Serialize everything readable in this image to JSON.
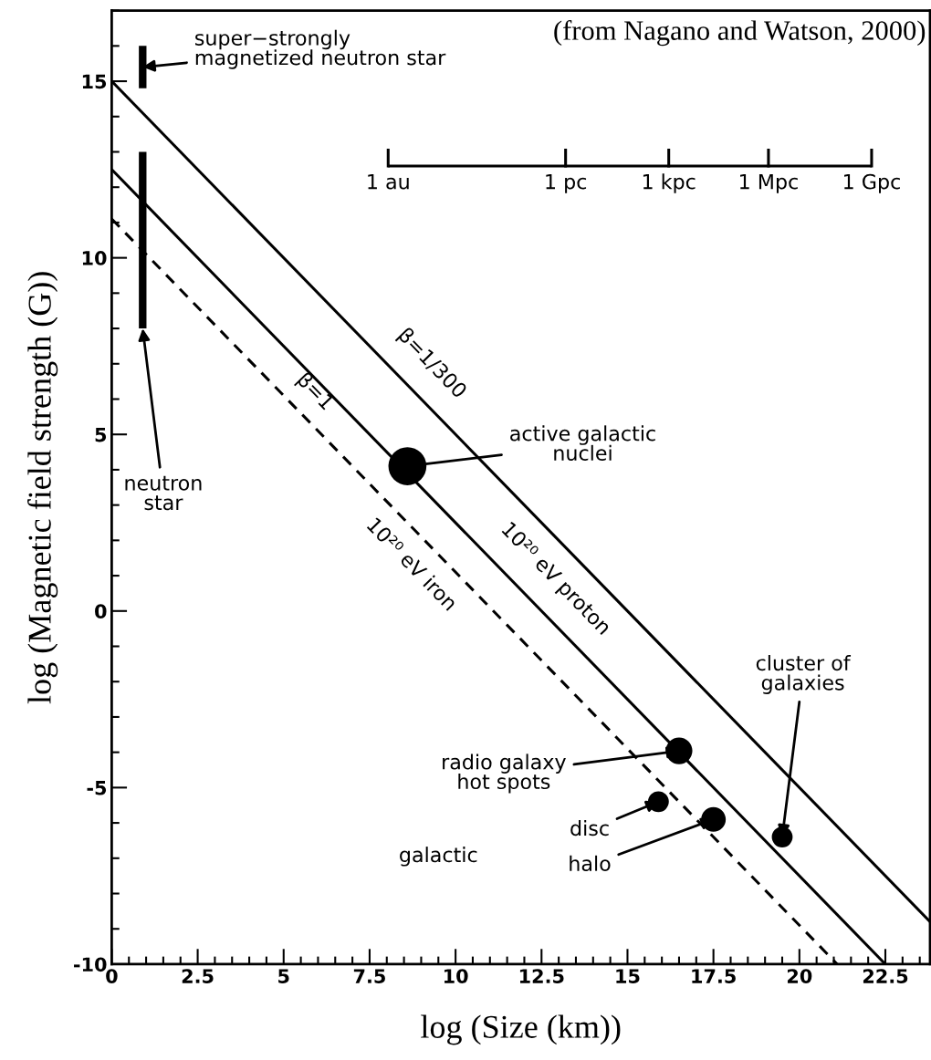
{
  "chart_data": {
    "type": "line",
    "xlabel": "log (Size (km))",
    "ylabel": "log (Magnetic field strength (G))",
    "xlim": [
      0,
      23.8
    ],
    "ylim": [
      -10,
      17
    ],
    "xticks": [
      0,
      2.5,
      5,
      7.5,
      10,
      12.5,
      15,
      17.5,
      20,
      22.5
    ],
    "yticks": [
      -10,
      -5,
      0,
      5,
      10,
      15
    ],
    "grid": false,
    "series": [
      {
        "color": "#000000",
        "x": [
          0,
          23.8
        ],
        "values": [
          15,
          -8.8
        ],
        "line_style": "solid"
      },
      {
        "color": "#000000",
        "x": [
          0,
          22.5
        ],
        "values": [
          12.5,
          -10
        ],
        "line_style": "solid"
      },
      {
        "color": "#000000",
        "x": [
          0,
          21.1
        ],
        "values": [
          11.1,
          -10
        ],
        "line_style": "dashed"
      },
      {
        "color": "#000000",
        "x": [
          0.9,
          0.9
        ],
        "values": [
          8,
          13
        ],
        "line_style": "solid"
      },
      {
        "color": "#000000",
        "x": [
          0.9,
          0.9
        ],
        "values": [
          14.8,
          16
        ],
        "line_style": "solid"
      },
      {
        "type": "bubble",
        "color": "#000000",
        "x": [
          8.6,
          16.5,
          15.9,
          17.5,
          19.5
        ],
        "values": [
          4.1,
          -3.96,
          -5.4,
          -5.9,
          -6.4
        ],
        "sizes": [
          1,
          0.49,
          0.3,
          0.42,
          0.3
        ]
      },
      {
        "color": "#000000",
        "x": [
          8.04,
          13.2,
          16.2,
          19.1,
          22.1
        ],
        "values": [
          12.6,
          12.6,
          12.6,
          12.6,
          12.6
        ],
        "errors": [
          [
            12.6,
            13.05
          ],
          [
            12.6,
            13.05
          ],
          [
            12.6,
            13.05
          ],
          [
            12.6,
            13.05
          ],
          [
            12.6,
            13.05
          ]
        ],
        "line_style": "solid"
      }
    ],
    "annotations": [
      "(from Nagano and Watson, 2000)",
      {
        "text": "super−strongly\nmagnetized neutron star",
        "x": 0.9,
        "y": 15.4
      },
      {
        "text": "neutron\nstar",
        "x": 0.9,
        "y": 8
      },
      {
        "text": "active galactic\nnuclei",
        "x": 8.6,
        "y": 4.1
      },
      {
        "text": "radio galaxy\nhot spots",
        "x": 16.5,
        "y": -3.96
      },
      {
        "text": "cluster of\ngalaxies",
        "x": 19.5,
        "y": -6.4
      },
      "galactic",
      {
        "text": "disc",
        "x": 15.9,
        "y": -5.4
      },
      {
        "text": "halo",
        "x": 17.5,
        "y": -5.9
      },
      "β=1/300",
      "10²⁰ eV proton",
      "β=1",
      "10²⁰ eV iron",
      {
        "text": "1 au",
        "x": 8.04,
        "y": 12.6
      },
      {
        "text": "1 pc",
        "x": 13.2,
        "y": 12.6
      },
      {
        "text": "1 kpc",
        "x": 16.2,
        "y": 12.6
      },
      {
        "text": "1 Mpc",
        "x": 19.1,
        "y": 12.6
      },
      {
        "text": "1 Gpc",
        "x": 22.1,
        "y": 12.6
      }
    ]
  }
}
